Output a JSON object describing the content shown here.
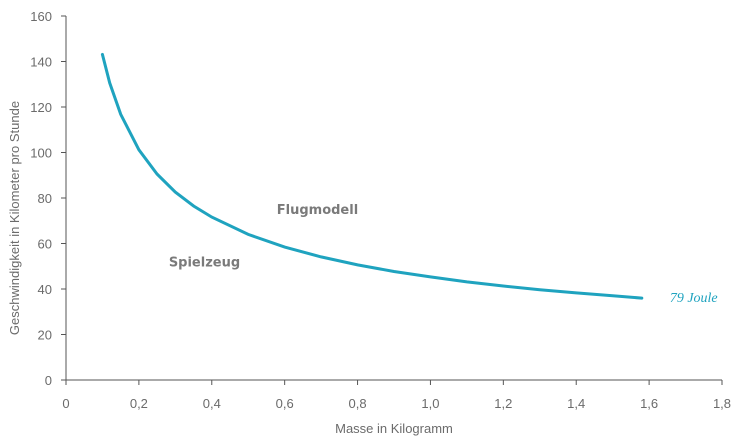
{
  "chart_data": {
    "type": "line",
    "xlabel": "Masse in Kilogramm",
    "ylabel": "Geschwindigkeit in Kilometer pro Stunde",
    "xlim": [
      0,
      1.8
    ],
    "ylim": [
      0,
      160
    ],
    "x_ticks": [
      "0",
      "0,2",
      "0,4",
      "0,6",
      "0,8",
      "1,0",
      "1,2",
      "1,4",
      "1,6",
      "1,8"
    ],
    "y_ticks": [
      "0",
      "20",
      "40",
      "60",
      "80",
      "100",
      "120",
      "140",
      "160"
    ],
    "grid": false,
    "series": [
      {
        "name": "79 Joule",
        "color": "#1fa3bf",
        "x": [
          0.1,
          0.12,
          0.15,
          0.2,
          0.25,
          0.3,
          0.35,
          0.4,
          0.5,
          0.6,
          0.7,
          0.8,
          0.9,
          1.0,
          1.1,
          1.2,
          1.3,
          1.4,
          1.5,
          1.58
        ],
        "y": [
          143.1,
          130.6,
          116.8,
          101.2,
          90.5,
          82.6,
          76.5,
          71.6,
          64.0,
          58.4,
          54.1,
          50.6,
          47.7,
          45.3,
          43.1,
          41.3,
          39.7,
          38.3,
          37.0,
          36.0
        ]
      }
    ],
    "annotations": [
      {
        "text": "Flugmodell",
        "x": 0.69,
        "y": 73
      },
      {
        "text": "Spielzeug",
        "x": 0.38,
        "y": 50
      }
    ]
  }
}
